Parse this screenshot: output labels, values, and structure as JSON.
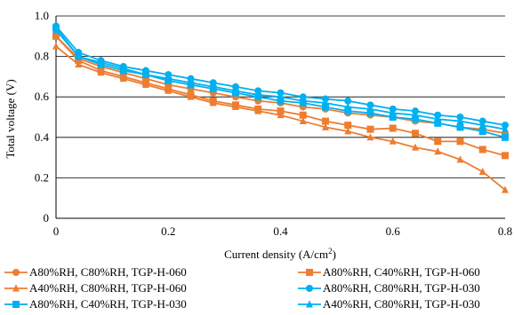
{
  "chart_data": {
    "type": "line",
    "xlabel_main": "Current density (A/cm",
    "xlabel_sup": "2",
    "xlabel_end": ")",
    "ylabel": "Total voltage (V)",
    "xlim": [
      0,
      0.8
    ],
    "ylim": [
      0,
      1.0
    ],
    "xticks": [
      "0",
      "0.2",
      "0.4",
      "0.6",
      "0.8"
    ],
    "yticks": [
      "0",
      "0.2",
      "0.4",
      "0.6",
      "0.8",
      "1.0"
    ],
    "grid": true,
    "legend_position": "bottom",
    "series": [
      {
        "name": "A80%RH, C80%RH, TGP-H-060",
        "color": "#ED7D31",
        "marker": "circle",
        "x": [
          0,
          0.04,
          0.08,
          0.12,
          0.16,
          0.2,
          0.24,
          0.28,
          0.32,
          0.36,
          0.4,
          0.44,
          0.48,
          0.52,
          0.56,
          0.6,
          0.64,
          0.68,
          0.72,
          0.76,
          0.8
        ],
        "y": [
          0.9,
          0.79,
          0.75,
          0.72,
          0.69,
          0.66,
          0.64,
          0.62,
          0.6,
          0.58,
          0.57,
          0.55,
          0.54,
          0.52,
          0.51,
          0.5,
          0.48,
          0.47,
          0.45,
          0.44,
          0.42
        ]
      },
      {
        "name": "A80%RH, C40%RH, TGP-H-060",
        "color": "#ED7D31",
        "marker": "square",
        "x": [
          0,
          0.04,
          0.08,
          0.12,
          0.16,
          0.2,
          0.24,
          0.28,
          0.32,
          0.36,
          0.4,
          0.44,
          0.48,
          0.52,
          0.56,
          0.6,
          0.64,
          0.68,
          0.72,
          0.76,
          0.8
        ],
        "y": [
          0.9,
          0.78,
          0.73,
          0.7,
          0.67,
          0.64,
          0.61,
          0.58,
          0.56,
          0.54,
          0.53,
          0.51,
          0.48,
          0.46,
          0.44,
          0.445,
          0.42,
          0.38,
          0.38,
          0.34,
          0.31
        ]
      },
      {
        "name": "A40%RH, C80%RH, TGP-H-060",
        "color": "#ED7D31",
        "marker": "triangle",
        "x": [
          0,
          0.04,
          0.08,
          0.12,
          0.16,
          0.2,
          0.24,
          0.28,
          0.32,
          0.36,
          0.4,
          0.44,
          0.48,
          0.52,
          0.56,
          0.6,
          0.64,
          0.68,
          0.72,
          0.76,
          0.8
        ],
        "y": [
          0.85,
          0.76,
          0.72,
          0.69,
          0.66,
          0.63,
          0.6,
          0.57,
          0.55,
          0.53,
          0.51,
          0.48,
          0.45,
          0.43,
          0.4,
          0.38,
          0.35,
          0.33,
          0.29,
          0.23,
          0.14
        ]
      },
      {
        "name": "A80%RH, C80%RH, TGP-H-030",
        "color": "#00B0F0",
        "marker": "circle",
        "x": [
          0,
          0.04,
          0.08,
          0.12,
          0.16,
          0.2,
          0.24,
          0.28,
          0.32,
          0.36,
          0.4,
          0.44,
          0.48,
          0.52,
          0.56,
          0.6,
          0.64,
          0.68,
          0.72,
          0.76,
          0.8
        ],
        "y": [
          0.95,
          0.82,
          0.78,
          0.75,
          0.73,
          0.71,
          0.69,
          0.67,
          0.65,
          0.63,
          0.62,
          0.6,
          0.59,
          0.58,
          0.56,
          0.54,
          0.53,
          0.51,
          0.5,
          0.48,
          0.46
        ]
      },
      {
        "name": "A80%RH, C40%RH, TGP-H-030",
        "color": "#00B0F0",
        "marker": "square",
        "x": [
          0,
          0.04,
          0.08,
          0.12,
          0.16,
          0.2,
          0.24,
          0.28,
          0.32,
          0.36,
          0.4,
          0.44,
          0.48,
          0.52,
          0.56,
          0.6,
          0.64,
          0.68,
          0.72,
          0.76,
          0.8
        ],
        "y": [
          0.94,
          0.8,
          0.76,
          0.73,
          0.71,
          0.68,
          0.66,
          0.64,
          0.62,
          0.6,
          0.58,
          0.57,
          0.55,
          0.53,
          0.52,
          0.5,
          0.49,
          0.47,
          0.45,
          0.43,
          0.4
        ]
      },
      {
        "name": "A40%RH, C80%RH, TGP-H-030",
        "color": "#00B0F0",
        "marker": "triangle",
        "x": [
          0,
          0.04,
          0.08,
          0.12,
          0.16,
          0.2,
          0.24,
          0.28,
          0.32,
          0.36,
          0.4,
          0.44,
          0.48,
          0.52,
          0.56,
          0.6,
          0.64,
          0.68,
          0.72,
          0.76,
          0.8
        ],
        "y": [
          0.93,
          0.8,
          0.77,
          0.74,
          0.71,
          0.69,
          0.67,
          0.65,
          0.63,
          0.61,
          0.6,
          0.58,
          0.57,
          0.55,
          0.54,
          0.52,
          0.51,
          0.49,
          0.48,
          0.46,
          0.44
        ]
      }
    ]
  }
}
